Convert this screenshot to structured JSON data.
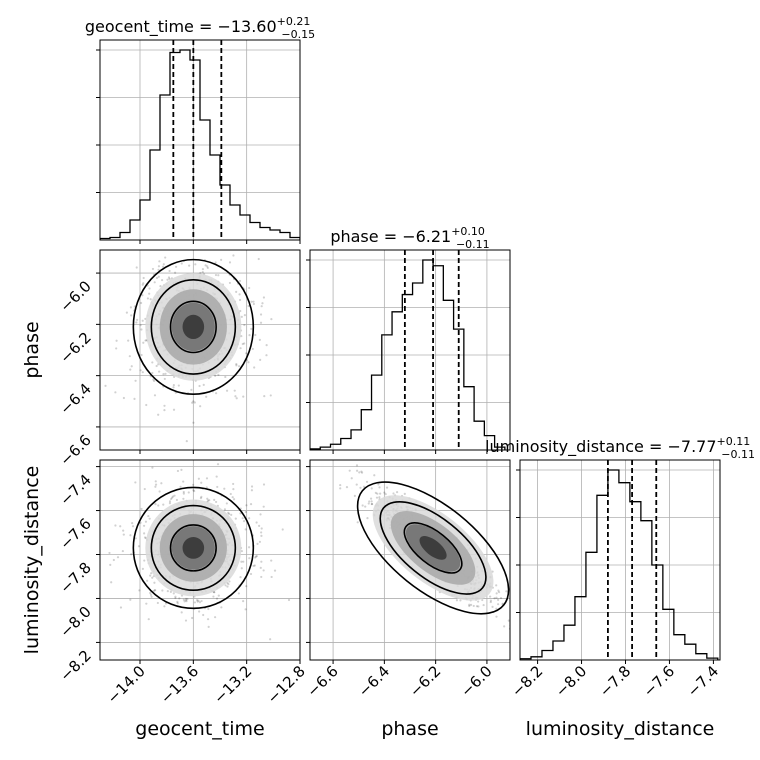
{
  "chart_data": {
    "type": "corner",
    "params": [
      "geocent_time",
      "phase",
      "luminosity_distance"
    ],
    "titles": [
      {
        "param": "geocent_time",
        "prefix": "geocent_time = ",
        "median": "−13.60",
        "plus": "+0.21",
        "minus": "−0.15"
      },
      {
        "param": "phase",
        "prefix": "phase = ",
        "median": "−6.21",
        "plus": "+0.10",
        "minus": "−0.11"
      },
      {
        "param": "luminosity_distance",
        "prefix": "luminosity_distance = ",
        "median": "−7.77",
        "plus": "+0.11",
        "minus": "−0.11"
      }
    ],
    "axes": {
      "geocent_time": {
        "range": [
          -14.3,
          -12.8
        ],
        "ticks": [
          -14.0,
          -13.6,
          -13.2,
          -12.8
        ],
        "tick_labels": [
          "−14.0",
          "−13.6",
          "−13.2",
          "−12.8"
        ]
      },
      "phase": {
        "range": [
          -6.69,
          -5.91
        ],
        "ticks": [
          -6.6,
          -6.4,
          -6.2,
          -6.0
        ],
        "tick_labels": [
          "−6.6",
          "−6.4",
          "−6.2",
          "−6.0"
        ]
      },
      "luminosity_distance": {
        "range": [
          -8.28,
          -7.37
        ],
        "ticks": [
          -8.2,
          -8.0,
          -7.8,
          -7.6,
          -7.4
        ],
        "tick_labels": [
          "−8.2",
          "−8.0",
          "−7.8",
          "−7.6",
          "−7.4"
        ]
      }
    },
    "histograms": {
      "geocent_time": {
        "bin_edges": [
          -14.3,
          -14.225,
          -14.15,
          -14.075,
          -14.0,
          -13.925,
          -13.85,
          -13.775,
          -13.7,
          -13.625,
          -13.55,
          -13.475,
          -13.4,
          -13.325,
          -13.25,
          -13.175,
          -13.1,
          -13.025,
          -12.95,
          -12.875,
          -12.8
        ],
        "counts": [
          0.3,
          0.5,
          1.5,
          4.0,
          8.0,
          18.0,
          29.0,
          37.5,
          38.0,
          36.0,
          24.0,
          17.0,
          11.0,
          7.0,
          5.0,
          3.5,
          2.5,
          2.0,
          1.5,
          0.5
        ],
        "quantiles": [
          -13.75,
          -13.6,
          -13.39
        ]
      },
      "phase": {
        "bin_edges": [
          -6.69,
          -6.65,
          -6.61,
          -6.57,
          -6.53,
          -6.49,
          -6.45,
          -6.41,
          -6.37,
          -6.33,
          -6.29,
          -6.25,
          -6.21,
          -6.17,
          -6.13,
          -6.09,
          -6.05,
          -6.01,
          -5.97,
          -5.93
        ],
        "counts": [
          0.2,
          0.5,
          1.0,
          2.0,
          3.5,
          7.0,
          13.0,
          20.0,
          24.0,
          27.0,
          29.0,
          33.0,
          32.0,
          26.0,
          21.0,
          11.0,
          5.0,
          2.5,
          0.5
        ],
        "quantiles": [
          -6.32,
          -6.21,
          -6.11
        ]
      },
      "luminosity_distance": {
        "bin_edges": [
          -8.28,
          -8.23,
          -8.18,
          -8.13,
          -8.08,
          -8.03,
          -7.98,
          -7.93,
          -7.88,
          -7.83,
          -7.78,
          -7.73,
          -7.68,
          -7.63,
          -7.58,
          -7.53,
          -7.48,
          -7.43,
          -7.38
        ],
        "counts": [
          0.2,
          0.5,
          1.5,
          3.0,
          5.5,
          10.0,
          17.0,
          26.0,
          30.0,
          28.0,
          25.0,
          22.0,
          15.0,
          8.0,
          4.0,
          2.5,
          1.0,
          0.3
        ],
        "quantiles": [
          -7.88,
          -7.77,
          -7.66
        ]
      }
    },
    "correlations": {
      "phase|geocent_time": 0.0,
      "luminosity_distance|geocent_time": 0.0,
      "luminosity_distance|phase": -0.9
    },
    "contour_levels": [
      0.39,
      0.86,
      0.99
    ],
    "grid": true
  }
}
